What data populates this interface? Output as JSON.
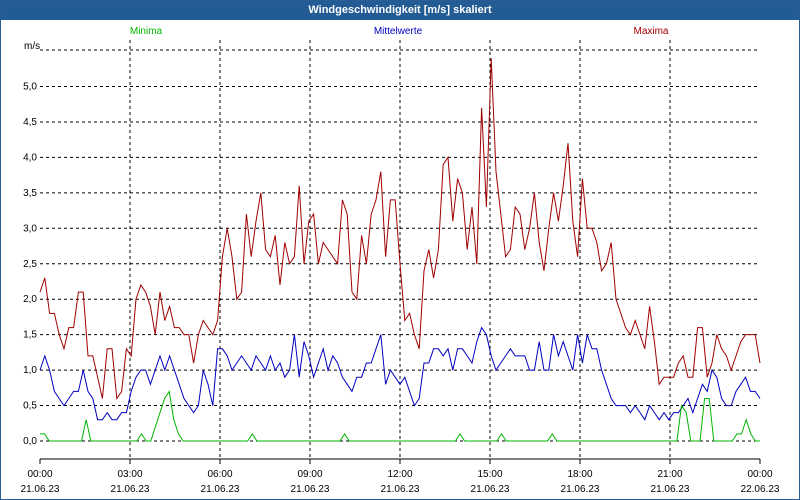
{
  "window": {
    "title": "Windgeschwindigkeit [m/s] skaliert"
  },
  "legend": {
    "min": "Minima",
    "mean": "Mittelwerte",
    "max": "Maxima"
  },
  "colors": {
    "min": "#00b400",
    "mean": "#0000c0",
    "max": "#a00000",
    "titlebar": "#235b95"
  },
  "chart_data": {
    "type": "line",
    "title": "Windgeschwindigkeit [m/s] skaliert",
    "ylabel": "m/s",
    "ylim": [
      -0.2,
      5.6
    ],
    "y_ticks": [
      0.0,
      0.5,
      1.0,
      1.5,
      2.0,
      2.5,
      3.0,
      3.5,
      4.0,
      4.5,
      5.0
    ],
    "y_tick_labels": [
      "0,0",
      "0,5",
      "1,0",
      "1,5",
      "2,0",
      "2,5",
      "3,0",
      "3,5",
      "4,0",
      "4,5",
      "5,0"
    ],
    "x_ticks": [
      {
        "time": "00:00",
        "date": "21.06.23"
      },
      {
        "time": "03:00",
        "date": "21.06.23"
      },
      {
        "time": "06:00",
        "date": "21.06.23"
      },
      {
        "time": "09:00",
        "date": "21.06.23"
      },
      {
        "time": "12:00",
        "date": "21.06.23"
      },
      {
        "time": "15:00",
        "date": "21.06.23"
      },
      {
        "time": "18:00",
        "date": "21.06.23"
      },
      {
        "time": "21:00",
        "date": "21.06.23"
      },
      {
        "time": "00:00",
        "date": "22.06.23"
      }
    ],
    "grid": true,
    "legend_position": "top",
    "sample_interval_min": 10,
    "series": [
      {
        "name": "Maxima",
        "values": [
          2.1,
          2.3,
          1.8,
          1.8,
          1.5,
          1.3,
          1.6,
          1.6,
          2.1,
          2.1,
          1.2,
          1.2,
          0.9,
          0.6,
          1.3,
          1.3,
          0.6,
          0.7,
          1.3,
          1.2,
          2.0,
          2.2,
          2.1,
          1.9,
          1.5,
          2.1,
          1.7,
          1.9,
          1.6,
          1.6,
          1.5,
          1.5,
          1.1,
          1.5,
          1.7,
          1.6,
          1.5,
          1.7,
          2.6,
          3.0,
          2.6,
          2.0,
          2.1,
          3.2,
          2.6,
          3.1,
          3.5,
          2.7,
          2.6,
          2.9,
          2.2,
          2.8,
          2.5,
          2.6,
          3.6,
          2.5,
          3.1,
          3.2,
          2.5,
          2.8,
          2.7,
          2.6,
          2.5,
          3.4,
          3.2,
          2.1,
          2.0,
          2.9,
          2.5,
          3.2,
          3.4,
          3.8,
          2.6,
          3.4,
          3.4,
          2.5,
          1.7,
          1.8,
          1.5,
          1.3,
          2.4,
          2.7,
          2.3,
          2.7,
          3.9,
          4.0,
          3.1,
          3.7,
          3.5,
          2.7,
          3.3,
          2.5,
          4.7,
          3.3,
          5.4,
          3.8,
          3.2,
          2.6,
          2.7,
          3.3,
          3.2,
          2.7,
          3.0,
          3.5,
          2.8,
          2.4,
          3.0,
          3.5,
          3.1,
          3.6,
          4.2,
          3.1,
          2.6,
          3.7,
          3.0,
          3.0,
          2.8,
          2.4,
          2.5,
          2.8,
          2.0,
          1.8,
          1.6,
          1.5,
          1.7,
          1.5,
          1.3,
          1.9,
          1.4,
          0.8,
          0.9,
          0.9,
          0.9,
          1.1,
          1.2,
          0.9,
          0.9,
          1.6,
          1.6,
          0.9,
          1.1,
          1.5,
          1.3,
          1.2,
          1.0,
          1.2,
          1.4,
          1.5,
          1.5,
          1.5,
          1.1
        ]
      },
      {
        "name": "Mittelwerte",
        "values": [
          1.0,
          1.2,
          1.0,
          0.7,
          0.6,
          0.5,
          0.6,
          0.7,
          0.7,
          1.0,
          0.7,
          0.6,
          0.3,
          0.3,
          0.4,
          0.3,
          0.3,
          0.4,
          0.4,
          0.7,
          0.9,
          1.0,
          1.0,
          0.8,
          1.0,
          1.2,
          1.0,
          1.2,
          1.0,
          0.8,
          0.6,
          0.5,
          0.4,
          0.5,
          1.0,
          0.8,
          0.5,
          1.3,
          1.3,
          1.2,
          1.0,
          1.1,
          1.2,
          1.1,
          1.0,
          1.2,
          1.1,
          1.0,
          1.2,
          1.0,
          1.1,
          0.9,
          1.0,
          1.5,
          0.9,
          1.4,
          1.2,
          0.9,
          1.1,
          1.3,
          1.0,
          1.2,
          1.1,
          0.9,
          0.8,
          0.7,
          0.9,
          0.9,
          1.1,
          1.1,
          1.3,
          1.5,
          0.8,
          1.0,
          0.9,
          0.8,
          0.9,
          0.7,
          0.5,
          0.6,
          1.1,
          1.1,
          1.3,
          1.3,
          1.2,
          1.3,
          1.0,
          1.3,
          1.3,
          1.2,
          1.1,
          1.4,
          1.6,
          1.5,
          1.2,
          1.0,
          1.1,
          1.2,
          1.3,
          1.2,
          1.2,
          1.2,
          1.0,
          1.0,
          1.4,
          1.0,
          1.0,
          1.5,
          1.2,
          1.4,
          1.2,
          1.0,
          1.5,
          1.1,
          1.5,
          1.3,
          1.3,
          1.0,
          0.8,
          0.6,
          0.5,
          0.5,
          0.5,
          0.4,
          0.5,
          0.4,
          0.3,
          0.5,
          0.4,
          0.3,
          0.4,
          0.3,
          0.4,
          0.4,
          0.5,
          0.6,
          0.4,
          0.6,
          0.8,
          0.7,
          1.0,
          0.9,
          0.6,
          0.5,
          0.5,
          0.7,
          0.8,
          0.9,
          0.7,
          0.7,
          0.6
        ]
      },
      {
        "name": "Minima",
        "values": [
          0.1,
          0.1,
          0.0,
          0.0,
          0.0,
          0.0,
          0.0,
          0.0,
          0.0,
          0.0,
          0.3,
          0.0,
          0.0,
          0.0,
          0.0,
          0.0,
          0.0,
          0.0,
          0.0,
          0.0,
          0.0,
          0.0,
          0.1,
          0.0,
          0.0,
          0.2,
          0.4,
          0.6,
          0.7,
          0.3,
          0.1,
          0.0,
          0.0,
          0.0,
          0.0,
          0.0,
          0.0,
          0.0,
          0.0,
          0.0,
          0.0,
          0.0,
          0.0,
          0.0,
          0.0,
          0.0,
          0.1,
          0.0,
          0.0,
          0.0,
          0.0,
          0.0,
          0.0,
          0.0,
          0.0,
          0.0,
          0.0,
          0.0,
          0.0,
          0.0,
          0.0,
          0.0,
          0.0,
          0.0,
          0.0,
          0.0,
          0.1,
          0.0,
          0.0,
          0.0,
          0.0,
          0.0,
          0.0,
          0.0,
          0.0,
          0.0,
          0.0,
          0.0,
          0.0,
          0.0,
          0.0,
          0.0,
          0.0,
          0.0,
          0.0,
          0.0,
          0.0,
          0.0,
          0.0,
          0.0,
          0.0,
          0.1,
          0.0,
          0.0,
          0.0,
          0.0,
          0.0,
          0.0,
          0.0,
          0.0,
          0.1,
          0.0,
          0.0,
          0.0,
          0.0,
          0.0,
          0.0,
          0.0,
          0.0,
          0.0,
          0.0,
          0.1,
          0.0,
          0.0,
          0.0,
          0.0,
          0.0,
          0.0,
          0.0,
          0.0,
          0.0,
          0.0,
          0.0,
          0.0,
          0.0,
          0.0,
          0.0,
          0.0,
          0.0,
          0.0,
          0.0,
          0.0,
          0.0,
          0.0,
          0.0,
          0.0,
          0.0,
          0.0,
          0.0,
          0.5,
          0.4,
          0.0,
          0.0,
          0.0,
          0.6,
          0.6,
          0.0,
          0.0,
          0.0,
          0.0,
          0.0,
          0.1,
          0.1,
          0.3,
          0.1,
          0.0,
          0.0
        ]
      }
    ]
  }
}
